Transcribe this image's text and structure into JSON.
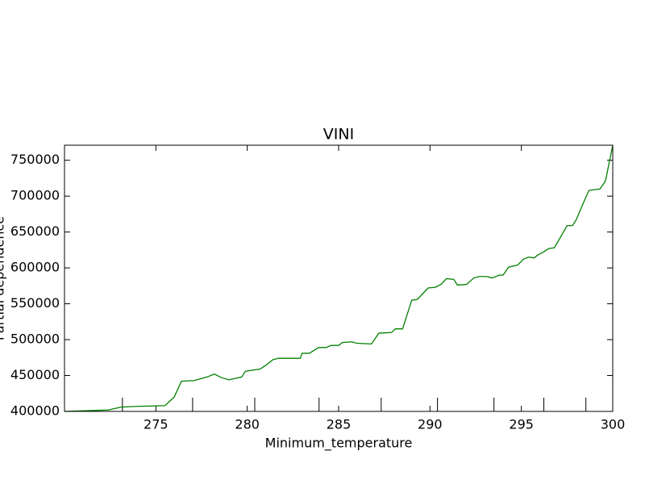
{
  "chart_data": {
    "type": "line",
    "title": "VINI",
    "xlabel": "Minimum_temperature",
    "ylabel": "Partial dependence",
    "x": [
      270.0,
      272.4,
      273.1,
      274.0,
      275.5,
      276.0,
      276.4,
      277.1,
      277.8,
      278.2,
      278.6,
      279.0,
      279.7,
      279.9,
      280.7,
      281.0,
      281.4,
      281.7,
      282.9,
      283.0,
      283.4,
      283.9,
      284.3,
      284.6,
      285.0,
      285.2,
      285.7,
      286.0,
      286.8,
      287.2,
      287.9,
      288.1,
      288.5,
      289.0,
      289.3,
      289.6,
      289.9,
      290.3,
      290.6,
      290.9,
      291.3,
      291.5,
      292.0,
      292.4,
      292.7,
      293.1,
      293.4,
      293.8,
      294.0,
      294.3,
      294.8,
      295.1,
      295.4,
      295.7,
      295.9,
      296.2,
      296.5,
      296.8,
      297.1,
      297.5,
      297.8,
      298.0,
      298.4,
      298.7,
      299.0,
      299.3,
      299.6,
      300.0
    ],
    "series": [
      {
        "name": "Partial dependence",
        "color": "#008000",
        "values": [
          400000,
          402000,
          406000,
          407000,
          408000,
          420000,
          442000,
          443000,
          448000,
          452000,
          447000,
          444000,
          448000,
          456000,
          459000,
          464000,
          472000,
          474000,
          474000,
          481000,
          481000,
          489000,
          489000,
          492000,
          492000,
          496000,
          497000,
          495000,
          494000,
          509000,
          510000,
          515000,
          515000,
          555000,
          556000,
          564000,
          572000,
          573000,
          577000,
          585000,
          584000,
          576000,
          577000,
          586000,
          588000,
          588000,
          586000,
          590000,
          590000,
          601000,
          604000,
          612000,
          615000,
          614000,
          618000,
          622000,
          627000,
          628000,
          641000,
          659000,
          659000,
          667000,
          691000,
          708000,
          709000,
          710000,
          721000,
          771000
        ]
      }
    ],
    "deciles": [
      273.17,
      277.01,
      280.41,
      283.93,
      287.33,
      290.41,
      293.5,
      296.23,
      298.53
    ],
    "xlim": [
      270,
      300
    ],
    "xticks": [
      275,
      280,
      285,
      290,
      295,
      300
    ],
    "ylim": [
      400000,
      771000
    ],
    "yticks": [
      400000,
      450000,
      500000,
      550000,
      600000,
      650000,
      700000,
      750000
    ]
  }
}
